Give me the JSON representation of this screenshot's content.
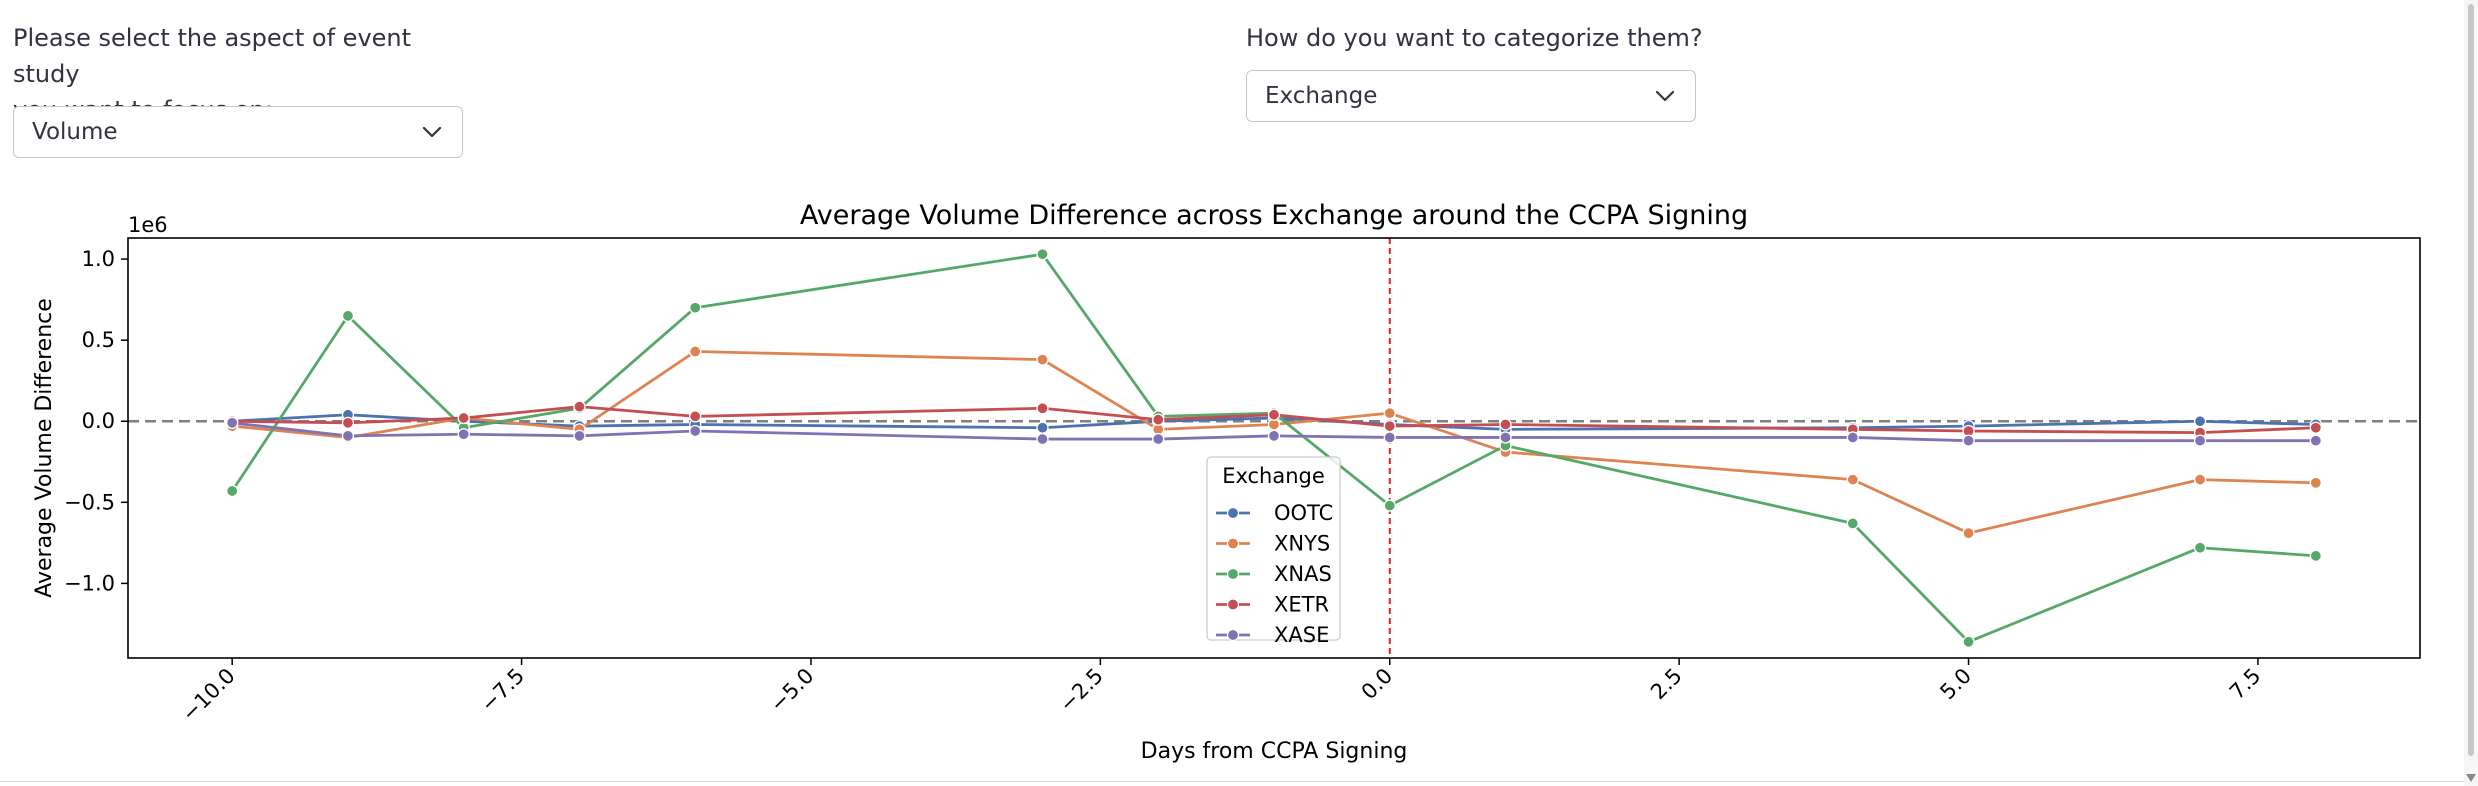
{
  "controls": {
    "aspect": {
      "label_line1": "Please select the aspect of event study",
      "label_line2": "you want to focus on:",
      "value": "Volume"
    },
    "category": {
      "label": "How do you want to categorize them?",
      "value": "Exchange"
    }
  },
  "colors": {
    "OOTC": "#4c72b0",
    "XNYS": "#dd8452",
    "XNAS": "#55a868",
    "XETR": "#c44e52",
    "XASE": "#8172b3"
  },
  "icons": {
    "dropdown": "chevron-down-icon"
  },
  "chart_data": {
    "type": "line",
    "title": "Average Volume Difference across Exchange around the CCPA Signing",
    "xlabel": "Days from CCPA Signing",
    "ylabel": "Average Volume Difference",
    "y_scale_label": "1e6",
    "xlim": [
      -10.9,
      8.9
    ],
    "ylim": [
      -1.46,
      1.13
    ],
    "x_ticks": [
      -10.0,
      -7.5,
      -5.0,
      -2.5,
      0.0,
      2.5,
      5.0,
      7.5
    ],
    "x_tick_labels": [
      "−10.0",
      "−7.5",
      "−5.0",
      "−2.5",
      "0.0",
      "2.5",
      "5.0",
      "7.5"
    ],
    "y_ticks": [
      1.0,
      0.5,
      0.0,
      -0.5,
      -1.0
    ],
    "y_tick_labels": [
      "1.0",
      "0.5",
      "0.0",
      "−0.5",
      "−1.0"
    ],
    "reference_hline": 0.0,
    "event_vline": 0.0,
    "legend": {
      "title": "Exchange",
      "placement": "lower-center"
    },
    "grid": false,
    "x": [
      -10,
      -9,
      -8,
      -7,
      -6,
      -3,
      -2,
      -1,
      0,
      1,
      4,
      5,
      7,
      8
    ],
    "series": [
      {
        "name": "OOTC",
        "values": [
          0.0,
          0.04,
          0.0,
          -0.03,
          -0.02,
          -0.04,
          0.0,
          0.02,
          -0.02,
          -0.05,
          -0.04,
          -0.03,
          0.0,
          -0.02
        ]
      },
      {
        "name": "XNYS",
        "values": [
          -0.03,
          -0.1,
          0.02,
          -0.05,
          0.43,
          0.38,
          -0.05,
          -0.02,
          0.05,
          -0.19,
          -0.36,
          -0.69,
          -0.36,
          -0.38
        ]
      },
      {
        "name": "XNAS",
        "values": [
          -0.43,
          0.65,
          -0.04,
          0.08,
          0.7,
          1.03,
          0.03,
          0.05,
          -0.52,
          -0.15,
          -0.63,
          -1.36,
          -0.78,
          -0.83
        ]
      },
      {
        "name": "XETR",
        "values": [
          0.0,
          -0.01,
          0.02,
          0.09,
          0.03,
          0.08,
          0.01,
          0.04,
          -0.03,
          -0.02,
          -0.05,
          -0.06,
          -0.07,
          -0.04
        ]
      },
      {
        "name": "XASE",
        "values": [
          -0.01,
          -0.09,
          -0.08,
          -0.09,
          -0.06,
          -0.11,
          -0.11,
          -0.09,
          -0.1,
          -0.1,
          -0.1,
          -0.12,
          -0.12,
          -0.12
        ]
      }
    ]
  }
}
